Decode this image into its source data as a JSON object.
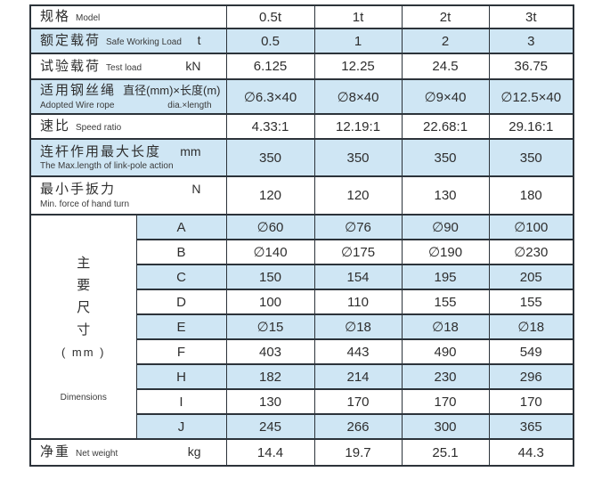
{
  "model_header": {
    "zh": "规格",
    "en": "Model",
    "values": [
      "0.5t",
      "1t",
      "2t",
      "3t"
    ]
  },
  "spec_rows": [
    {
      "zh": "额定载荷",
      "en": "Safe Working Load",
      "unit": "t",
      "layout": "single",
      "blue": true,
      "values": [
        "0.5",
        "1",
        "2",
        "3"
      ]
    },
    {
      "zh": "试验载荷",
      "en": "Test load",
      "unit": "kN",
      "layout": "single",
      "blue": false,
      "values": [
        "6.125",
        "12.25",
        "24.5",
        "36.75"
      ]
    },
    {
      "zh": "适用钢丝绳",
      "zh2": "直径(mm)×长度(m)",
      "en": "Adopted Wire rope",
      "en2": "dia.×length",
      "layout": "double",
      "blue": true,
      "values": [
        "∅6.3×40",
        "∅8×40",
        "∅9×40",
        "∅12.5×40"
      ]
    },
    {
      "zh": "速比",
      "en": "Speed ratio",
      "layout": "single",
      "blue": false,
      "values": [
        "4.33:1",
        "12.19:1",
        "22.68:1",
        "29.16:1"
      ]
    },
    {
      "zh": "连杆作用最大长度",
      "en": "The Max.length of link-pole action",
      "unit": "mm",
      "layout": "double",
      "blue": true,
      "values": [
        "350",
        "350",
        "350",
        "350"
      ]
    },
    {
      "zh": "最小手扳力",
      "en": "Min. force of hand turn",
      "unit": "N",
      "layout": "double",
      "blue": false,
      "values": [
        "120",
        "120",
        "130",
        "180"
      ]
    }
  ],
  "dimensions": {
    "zh_chars": [
      "主",
      "要",
      "尺",
      "寸"
    ],
    "unit": "( mm )",
    "en": "Dimensions",
    "rows": [
      {
        "letter": "A",
        "blue": true,
        "values": [
          "∅60",
          "∅76",
          "∅90",
          "∅100"
        ]
      },
      {
        "letter": "B",
        "blue": false,
        "values": [
          "∅140",
          "∅175",
          "∅190",
          "∅230"
        ]
      },
      {
        "letter": "C",
        "blue": true,
        "values": [
          "150",
          "154",
          "195",
          "205"
        ]
      },
      {
        "letter": "D",
        "blue": false,
        "values": [
          "100",
          "110",
          "155",
          "155"
        ]
      },
      {
        "letter": "E",
        "blue": true,
        "values": [
          "∅15",
          "∅18",
          "∅18",
          "∅18"
        ]
      },
      {
        "letter": "F",
        "blue": false,
        "values": [
          "403",
          "443",
          "490",
          "549"
        ]
      },
      {
        "letter": "H",
        "blue": true,
        "values": [
          "182",
          "214",
          "230",
          "296"
        ]
      },
      {
        "letter": "I",
        "blue": false,
        "values": [
          "130",
          "170",
          "170",
          "170"
        ]
      },
      {
        "letter": "J",
        "blue": true,
        "values": [
          "245",
          "266",
          "300",
          "365"
        ]
      }
    ]
  },
  "net_weight": {
    "zh": "净重",
    "en": "Net weight",
    "unit": "kg",
    "values": [
      "14.4",
      "19.7",
      "25.1",
      "44.3"
    ]
  },
  "colors": {
    "highlight": "#cfe6f4",
    "border": "#2c333a",
    "text": "#2e2e2e"
  }
}
